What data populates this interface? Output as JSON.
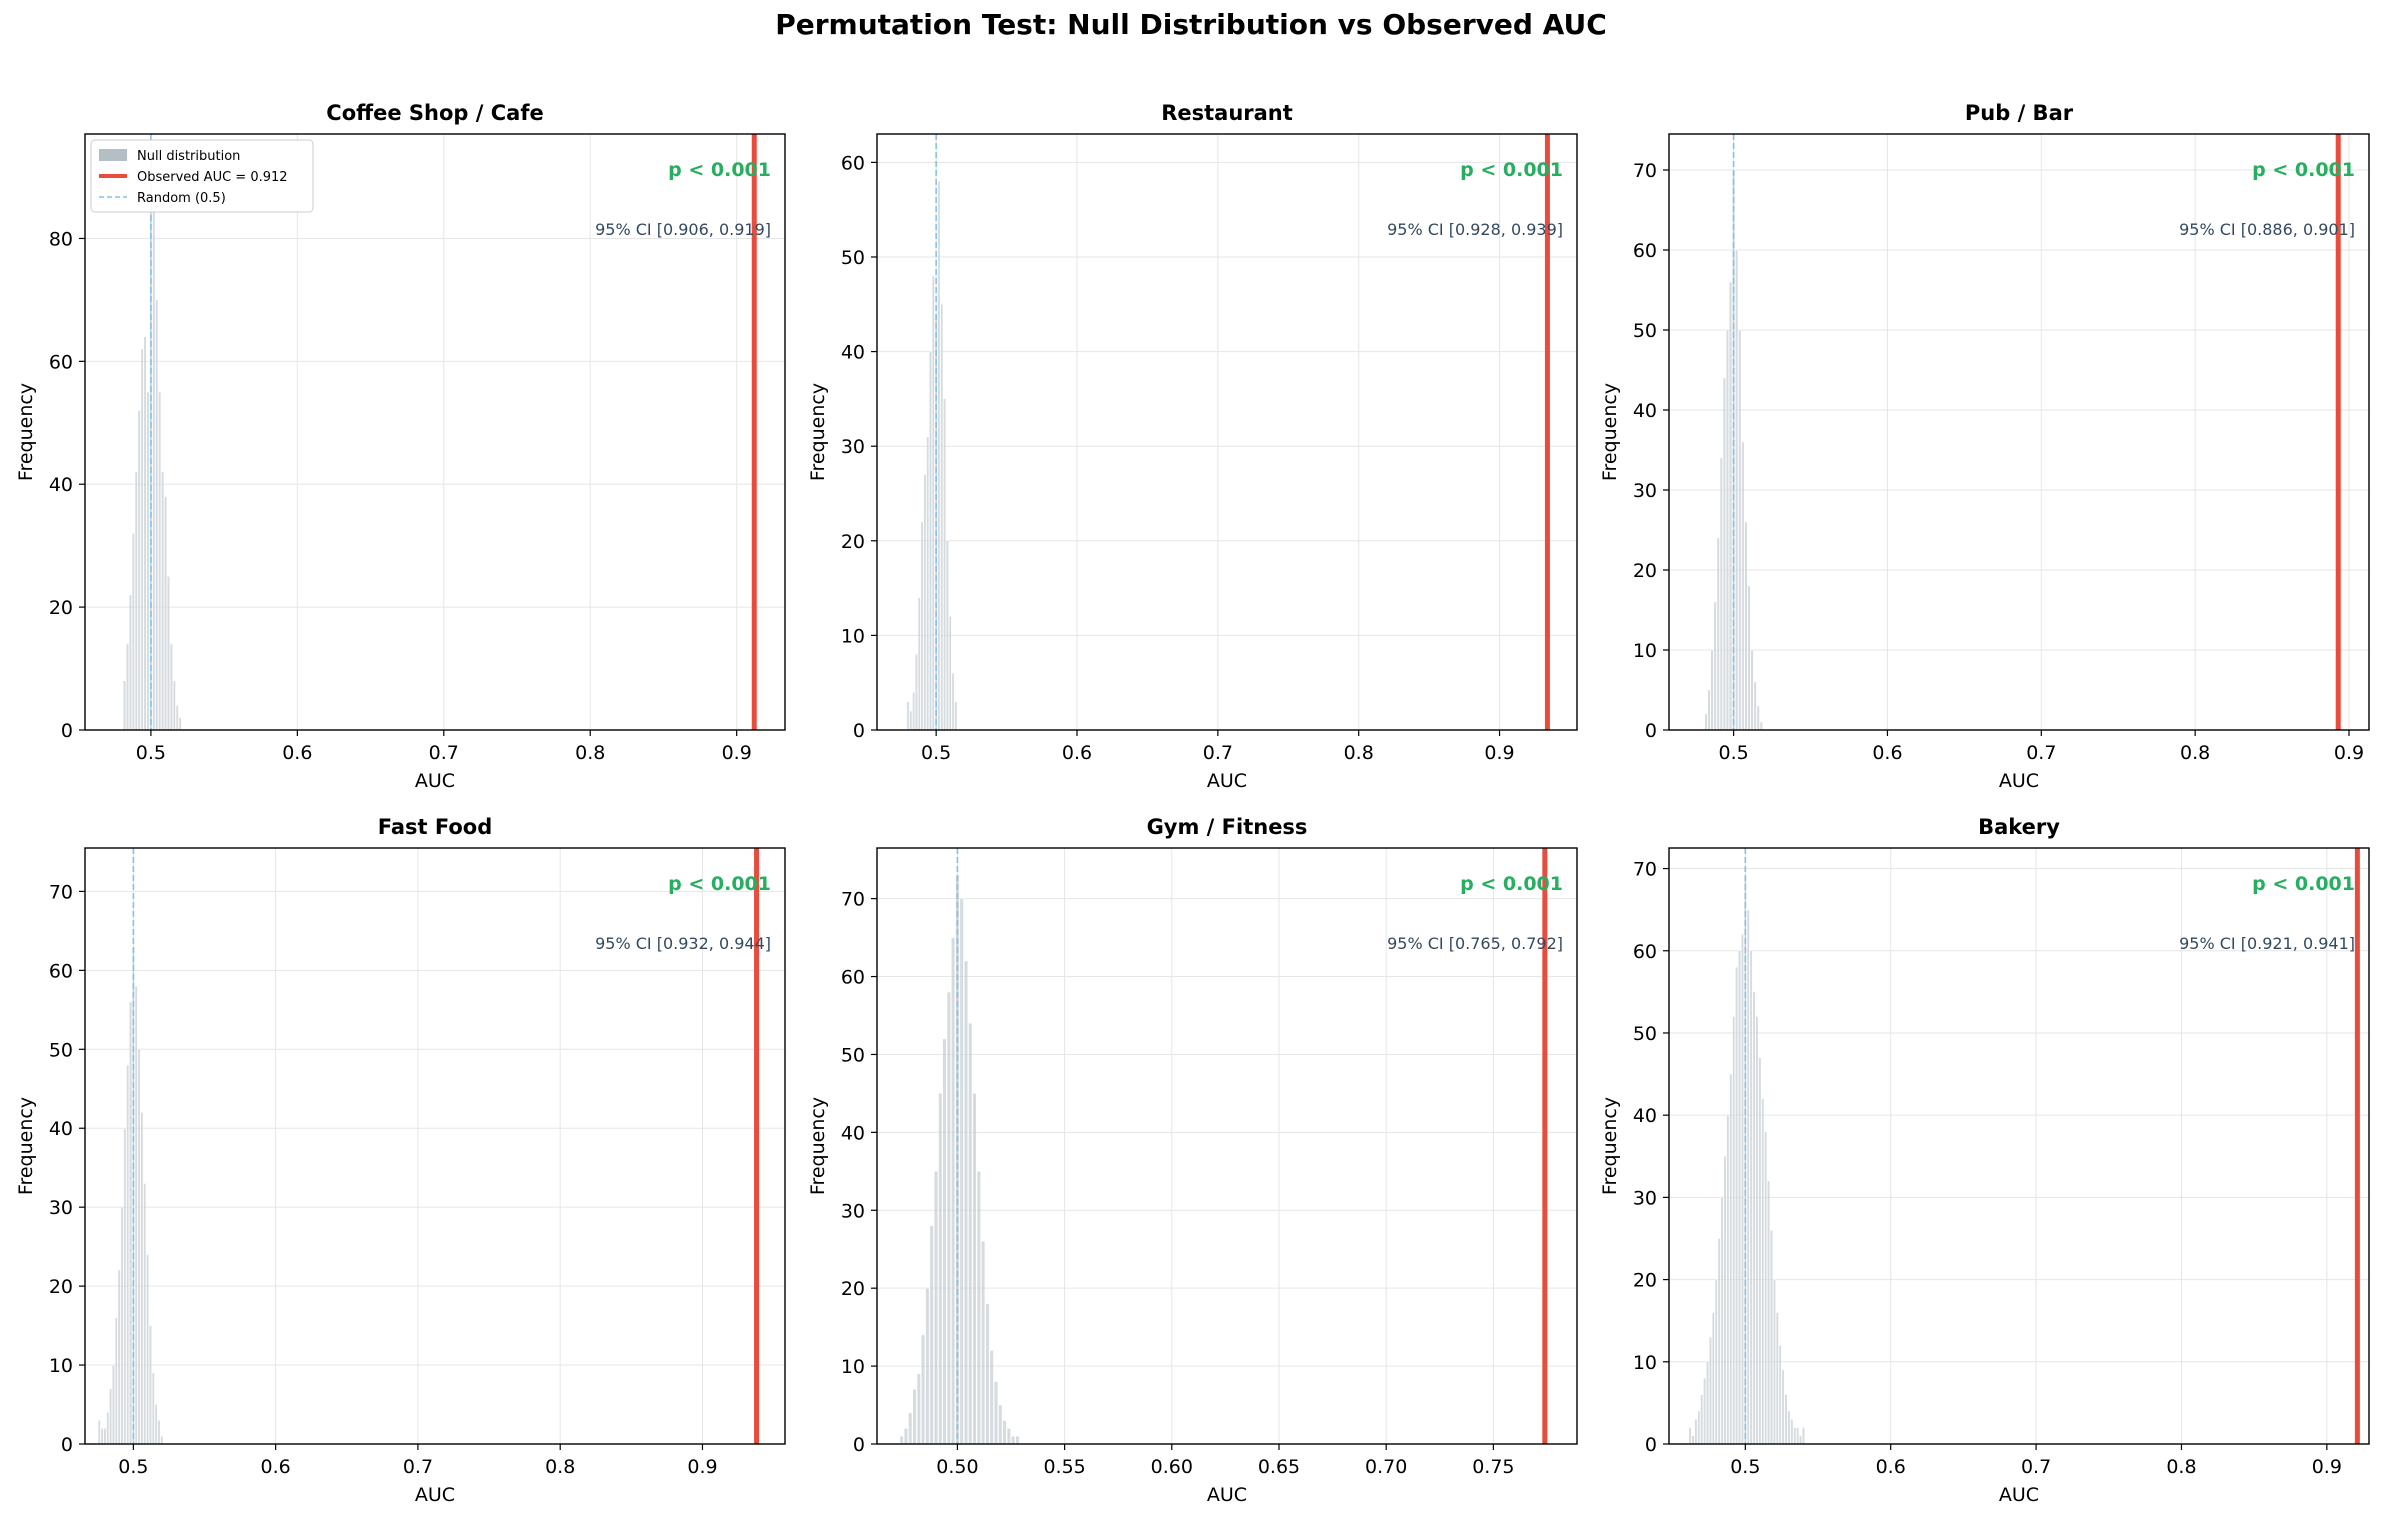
{
  "figure": {
    "title": "Permutation Test: Null Distribution vs Observed AUC"
  },
  "colors": {
    "null_bar": "#b3bec5",
    "observed": "#e74c3c",
    "random": "#85c1e9",
    "pvalue": "#27ae60",
    "ci_text": "#34495e",
    "grid": "#e6e6e6"
  },
  "legend": {
    "location": "upper-left",
    "null_label": "Null distribution",
    "observed_label": "Observed AUC = 0.912",
    "random_label": "Random (0.5)"
  },
  "chart_data": [
    {
      "type": "bar",
      "title": "Coffee Shop / Cafe",
      "xlabel": "AUC",
      "ylabel": "Frequency",
      "xlim": [
        0.455,
        0.933
      ],
      "ylim": [
        0,
        97
      ],
      "xticks": [
        0.5,
        0.6,
        0.7,
        0.8,
        0.9
      ],
      "xtick_labels": [
        "0.5",
        "0.6",
        "0.7",
        "0.8",
        "0.9"
      ],
      "yticks": [
        0,
        20,
        40,
        60,
        80
      ],
      "ytick_labels": [
        "0",
        "20",
        "40",
        "60",
        "80"
      ],
      "observed_auc": 0.912,
      "random_line": 0.5,
      "p_text": "p < 0.001",
      "ci_text": "95% CI [0.906, 0.919]",
      "show_legend": true,
      "null_hist": {
        "x": [
          0.482,
          0.484,
          0.486,
          0.488,
          0.49,
          0.492,
          0.494,
          0.496,
          0.498,
          0.5,
          0.502,
          0.504,
          0.506,
          0.508,
          0.51,
          0.512,
          0.514,
          0.516,
          0.518,
          0.52
        ],
        "counts": [
          8,
          14,
          22,
          32,
          42,
          52,
          62,
          64,
          55,
          94,
          86,
          70,
          55,
          42,
          38,
          25,
          14,
          8,
          4,
          2
        ]
      }
    },
    {
      "type": "bar",
      "title": "Restaurant",
      "xlabel": "AUC",
      "ylabel": "Frequency",
      "xlim": [
        0.458,
        0.955
      ],
      "ylim": [
        0,
        63
      ],
      "xticks": [
        0.5,
        0.6,
        0.7,
        0.8,
        0.9
      ],
      "xtick_labels": [
        "0.5",
        "0.6",
        "0.7",
        "0.8",
        "0.9"
      ],
      "yticks": [
        0,
        10,
        20,
        30,
        40,
        50,
        60
      ],
      "ytick_labels": [
        "0",
        "10",
        "20",
        "30",
        "40",
        "50",
        "60"
      ],
      "observed_auc": 0.934,
      "random_line": 0.5,
      "p_text": "p < 0.001",
      "ci_text": "95% CI [0.928, 0.939]",
      "show_legend": false,
      "null_hist": {
        "x": [
          0.48,
          0.482,
          0.484,
          0.486,
          0.488,
          0.49,
          0.492,
          0.494,
          0.496,
          0.498,
          0.5,
          0.502,
          0.504,
          0.506,
          0.508,
          0.51,
          0.512,
          0.514
        ],
        "counts": [
          3,
          2,
          4,
          8,
          14,
          22,
          27,
          31,
          40,
          48,
          44,
          58,
          45,
          35,
          20,
          12,
          6,
          3
        ]
      }
    },
    {
      "type": "bar",
      "title": "Pub / Bar",
      "xlabel": "AUC",
      "ylabel": "Frequency",
      "xlim": [
        0.458,
        0.913
      ],
      "ylim": [
        0,
        74.5
      ],
      "xticks": [
        0.5,
        0.6,
        0.7,
        0.8,
        0.9
      ],
      "xtick_labels": [
        "0.5",
        "0.6",
        "0.7",
        "0.8",
        "0.9"
      ],
      "yticks": [
        0,
        10,
        20,
        30,
        40,
        50,
        60,
        70
      ],
      "ytick_labels": [
        "0",
        "10",
        "20",
        "30",
        "40",
        "50",
        "60",
        "70"
      ],
      "observed_auc": 0.893,
      "random_line": 0.5,
      "p_text": "p < 0.001",
      "ci_text": "95% CI [0.886, 0.901]",
      "show_legend": false,
      "null_hist": {
        "x": [
          0.482,
          0.484,
          0.486,
          0.488,
          0.49,
          0.492,
          0.494,
          0.496,
          0.498,
          0.5,
          0.502,
          0.504,
          0.506,
          0.508,
          0.51,
          0.512,
          0.514,
          0.516,
          0.518
        ],
        "counts": [
          2,
          5,
          10,
          16,
          24,
          34,
          44,
          50,
          56,
          70,
          60,
          50,
          36,
          26,
          18,
          10,
          6,
          3,
          1
        ]
      }
    },
    {
      "type": "bar",
      "title": "Fast Food",
      "xlabel": "AUC",
      "ylabel": "Frequency",
      "xlim": [
        0.466,
        0.958
      ],
      "ylim": [
        0,
        75.5
      ],
      "xticks": [
        0.5,
        0.6,
        0.7,
        0.8,
        0.9
      ],
      "xtick_labels": [
        "0.5",
        "0.6",
        "0.7",
        "0.8",
        "0.9"
      ],
      "yticks": [
        0,
        10,
        20,
        30,
        40,
        50,
        60,
        70
      ],
      "ytick_labels": [
        "0",
        "10",
        "20",
        "30",
        "40",
        "50",
        "60",
        "70"
      ],
      "observed_auc": 0.938,
      "random_line": 0.5,
      "p_text": "p < 0.001",
      "ci_text": "95% CI [0.932, 0.944]",
      "show_legend": false,
      "null_hist": {
        "x": [
          0.476,
          0.478,
          0.48,
          0.482,
          0.484,
          0.486,
          0.488,
          0.49,
          0.492,
          0.494,
          0.496,
          0.498,
          0.5,
          0.502,
          0.504,
          0.506,
          0.508,
          0.51,
          0.512,
          0.514,
          0.516,
          0.518,
          0.52
        ],
        "counts": [
          3,
          2,
          2,
          4,
          7,
          10,
          16,
          22,
          30,
          40,
          48,
          56,
          63,
          58,
          50,
          42,
          33,
          24,
          15,
          9,
          5,
          3,
          1
        ]
      }
    },
    {
      "type": "bar",
      "title": "Gym / Fitness",
      "xlabel": "AUC",
      "ylabel": "Frequency",
      "xlim": [
        0.4625,
        0.789
      ],
      "ylim": [
        0,
        76.5
      ],
      "xticks": [
        0.5,
        0.55,
        0.6,
        0.65,
        0.7,
        0.75
      ],
      "xtick_labels": [
        "0.50",
        "0.55",
        "0.60",
        "0.65",
        "0.70",
        "0.75"
      ],
      "yticks": [
        0,
        10,
        20,
        30,
        40,
        50,
        60,
        70
      ],
      "ytick_labels": [
        "0",
        "10",
        "20",
        "30",
        "40",
        "50",
        "60",
        "70"
      ],
      "observed_auc": 0.774,
      "random_line": 0.5,
      "p_text": "p < 0.001",
      "ci_text": "95% CI [0.765, 0.792]",
      "show_legend": false,
      "null_hist": {
        "x": [
          0.474,
          0.476,
          0.478,
          0.48,
          0.482,
          0.484,
          0.486,
          0.488,
          0.49,
          0.492,
          0.494,
          0.496,
          0.498,
          0.5,
          0.502,
          0.504,
          0.506,
          0.508,
          0.51,
          0.512,
          0.514,
          0.516,
          0.518,
          0.52,
          0.522,
          0.524,
          0.526,
          0.528
        ],
        "counts": [
          1,
          2,
          4,
          7,
          9,
          14,
          20,
          28,
          35,
          45,
          52,
          58,
          65,
          73,
          70,
          62,
          54,
          45,
          35,
          26,
          18,
          12,
          8,
          5,
          3,
          2,
          1,
          1
        ]
      }
    },
    {
      "type": "bar",
      "title": "Bakery",
      "xlabel": "AUC",
      "ylabel": "Frequency",
      "xlim": [
        0.4475,
        0.929
      ],
      "ylim": [
        0,
        72.5
      ],
      "xticks": [
        0.5,
        0.6,
        0.7,
        0.8,
        0.9
      ],
      "xtick_labels": [
        "0.5",
        "0.6",
        "0.7",
        "0.8",
        "0.9"
      ],
      "yticks": [
        0,
        10,
        20,
        30,
        40,
        50,
        60,
        70
      ],
      "ytick_labels": [
        "0",
        "10",
        "20",
        "30",
        "40",
        "50",
        "60",
        "70"
      ],
      "observed_auc": 0.921,
      "random_line": 0.5,
      "p_text": "p < 0.001",
      "ci_text": "95% CI [0.921, 0.941]",
      "show_legend": false,
      "null_hist": {
        "x": [
          0.462,
          0.464,
          0.466,
          0.468,
          0.47,
          0.472,
          0.474,
          0.476,
          0.478,
          0.48,
          0.482,
          0.484,
          0.486,
          0.488,
          0.49,
          0.492,
          0.494,
          0.496,
          0.498,
          0.5,
          0.502,
          0.504,
          0.506,
          0.508,
          0.51,
          0.512,
          0.514,
          0.516,
          0.518,
          0.52,
          0.522,
          0.524,
          0.526,
          0.528,
          0.53,
          0.532,
          0.534,
          0.536,
          0.538,
          0.54
        ],
        "counts": [
          2,
          1,
          3,
          4,
          6,
          8,
          10,
          13,
          16,
          20,
          25,
          30,
          35,
          40,
          45,
          52,
          58,
          60,
          62,
          69,
          65,
          60,
          55,
          52,
          47,
          42,
          38,
          32,
          26,
          20,
          16,
          12,
          9,
          6,
          4,
          3,
          2,
          2,
          1,
          2
        ]
      }
    }
  ]
}
